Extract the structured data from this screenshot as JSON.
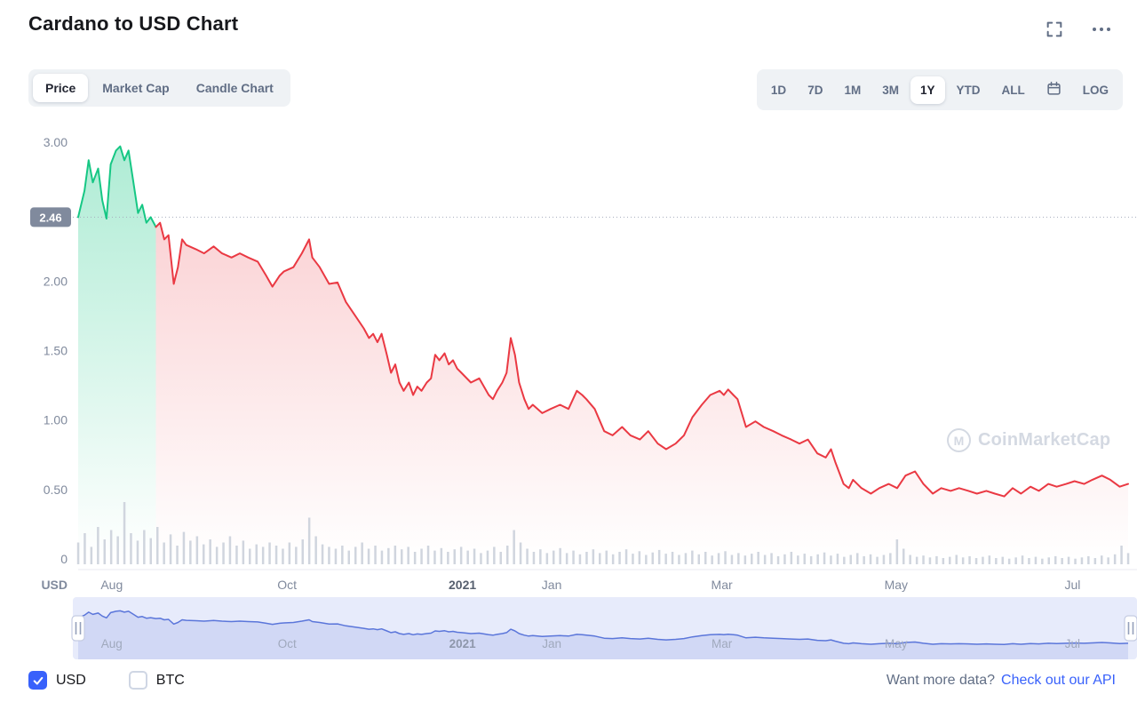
{
  "header": {
    "title": "Cardano to USD Chart"
  },
  "chart_tabs": {
    "items": [
      {
        "label": "Price",
        "active": true
      },
      {
        "label": "Market Cap",
        "active": false
      },
      {
        "label": "Candle Chart",
        "active": false
      }
    ]
  },
  "range_tabs": {
    "items": [
      {
        "label": "1D"
      },
      {
        "label": "7D"
      },
      {
        "label": "1M"
      },
      {
        "label": "3M"
      },
      {
        "label": "1Y",
        "active": true
      },
      {
        "label": "YTD"
      },
      {
        "label": "ALL"
      },
      {
        "label": "LOG"
      }
    ]
  },
  "watermark": {
    "text": "CoinMarketCap",
    "logo_letter": "M"
  },
  "currency": {
    "usd_label": "USD",
    "btc_label": "BTC"
  },
  "footer": {
    "prompt": "Want more data?",
    "link_label": "Check out our API"
  },
  "chart_data": {
    "type": "line",
    "title": "Cardano to USD Chart",
    "unit": "USD",
    "current_price": 2.46,
    "current_price_label": "2.46",
    "ylim": [
      0,
      3.2
    ],
    "yticks": [
      {
        "value": 3.0,
        "label": "3.00"
      },
      {
        "value": 2.0,
        "label": "2.00"
      },
      {
        "value": 1.5,
        "label": "1.50"
      },
      {
        "value": 1.0,
        "label": "1.00"
      },
      {
        "value": 0.5,
        "label": "0.50"
      },
      {
        "value": 0.0,
        "label": "0"
      }
    ],
    "x_labels": [
      {
        "label": "Aug",
        "pos": 3.2
      },
      {
        "label": "Oct",
        "pos": 19.9
      },
      {
        "label": "2021",
        "pos": 36.6,
        "bold": true
      },
      {
        "label": "Jan",
        "pos": 45.1
      },
      {
        "label": "Mar",
        "pos": 61.3
      },
      {
        "label": "May",
        "pos": 77.9
      },
      {
        "label": "Jul",
        "pos": 94.7
      }
    ],
    "green_until_pos": 7.4,
    "series": [
      [
        0,
        2.46
      ],
      [
        0.6,
        2.65
      ],
      [
        1,
        2.87
      ],
      [
        1.4,
        2.71
      ],
      [
        1.9,
        2.81
      ],
      [
        2.3,
        2.58
      ],
      [
        2.7,
        2.45
      ],
      [
        3.1,
        2.84
      ],
      [
        3.6,
        2.94
      ],
      [
        4,
        2.97
      ],
      [
        4.4,
        2.87
      ],
      [
        4.8,
        2.94
      ],
      [
        5.2,
        2.74
      ],
      [
        5.7,
        2.49
      ],
      [
        6.1,
        2.55
      ],
      [
        6.5,
        2.42
      ],
      [
        6.9,
        2.46
      ],
      [
        7.4,
        2.39
      ],
      [
        7.8,
        2.42
      ],
      [
        8.2,
        2.3
      ],
      [
        8.6,
        2.33
      ],
      [
        9.1,
        1.98
      ],
      [
        9.5,
        2.1
      ],
      [
        9.9,
        2.3
      ],
      [
        10.3,
        2.26
      ],
      [
        11.2,
        2.23
      ],
      [
        12,
        2.2
      ],
      [
        12.9,
        2.25
      ],
      [
        13.7,
        2.2
      ],
      [
        14.6,
        2.17
      ],
      [
        15.4,
        2.2
      ],
      [
        16.2,
        2.17
      ],
      [
        17.1,
        2.14
      ],
      [
        17.9,
        2.04
      ],
      [
        18.5,
        1.96
      ],
      [
        19.2,
        2.04
      ],
      [
        19.6,
        2.07
      ],
      [
        20.5,
        2.1
      ],
      [
        21.3,
        2.2
      ],
      [
        22,
        2.3
      ],
      [
        22.3,
        2.17
      ],
      [
        23,
        2.1
      ],
      [
        23.9,
        1.98
      ],
      [
        24.7,
        1.99
      ],
      [
        25.5,
        1.85
      ],
      [
        26.4,
        1.75
      ],
      [
        27.2,
        1.66
      ],
      [
        27.7,
        1.59
      ],
      [
        28.1,
        1.62
      ],
      [
        28.5,
        1.56
      ],
      [
        28.9,
        1.62
      ],
      [
        29.4,
        1.47
      ],
      [
        29.8,
        1.34
      ],
      [
        30.2,
        1.4
      ],
      [
        30.6,
        1.27
      ],
      [
        31,
        1.21
      ],
      [
        31.5,
        1.27
      ],
      [
        31.9,
        1.18
      ],
      [
        32.3,
        1.24
      ],
      [
        32.7,
        1.21
      ],
      [
        33.2,
        1.27
      ],
      [
        33.6,
        1.3
      ],
      [
        34,
        1.47
      ],
      [
        34.4,
        1.43
      ],
      [
        34.9,
        1.48
      ],
      [
        35.3,
        1.4
      ],
      [
        35.7,
        1.43
      ],
      [
        36.1,
        1.37
      ],
      [
        36.5,
        1.34
      ],
      [
        37.4,
        1.27
      ],
      [
        38.2,
        1.3
      ],
      [
        39.1,
        1.18
      ],
      [
        39.5,
        1.15
      ],
      [
        39.9,
        1.21
      ],
      [
        40.4,
        1.27
      ],
      [
        40.8,
        1.34
      ],
      [
        41.2,
        1.59
      ],
      [
        41.6,
        1.47
      ],
      [
        42,
        1.27
      ],
      [
        42.5,
        1.15
      ],
      [
        42.9,
        1.08
      ],
      [
        43.3,
        1.11
      ],
      [
        44.2,
        1.05
      ],
      [
        45,
        1.08
      ],
      [
        45.9,
        1.11
      ],
      [
        46.7,
        1.08
      ],
      [
        47.5,
        1.21
      ],
      [
        48,
        1.18
      ],
      [
        48.4,
        1.15
      ],
      [
        49.2,
        1.08
      ],
      [
        50.1,
        0.92
      ],
      [
        50.9,
        0.89
      ],
      [
        51.8,
        0.95
      ],
      [
        52.6,
        0.89
      ],
      [
        53.5,
        0.86
      ],
      [
        54.3,
        0.92
      ],
      [
        55.2,
        0.83
      ],
      [
        56,
        0.79
      ],
      [
        56.9,
        0.83
      ],
      [
        57.7,
        0.89
      ],
      [
        58.5,
        1.02
      ],
      [
        59.4,
        1.11
      ],
      [
        60.2,
        1.18
      ],
      [
        61.1,
        1.21
      ],
      [
        61.5,
        1.18
      ],
      [
        61.9,
        1.22
      ],
      [
        62.4,
        1.18
      ],
      [
        62.8,
        1.15
      ],
      [
        63.6,
        0.95
      ],
      [
        64.5,
        0.99
      ],
      [
        65.3,
        0.95
      ],
      [
        66.2,
        0.92
      ],
      [
        67,
        0.89
      ],
      [
        67.9,
        0.86
      ],
      [
        68.7,
        0.83
      ],
      [
        69.5,
        0.86
      ],
      [
        70.4,
        0.76
      ],
      [
        71.2,
        0.73
      ],
      [
        71.7,
        0.79
      ],
      [
        72.1,
        0.7
      ],
      [
        72.9,
        0.54
      ],
      [
        73.4,
        0.51
      ],
      [
        73.8,
        0.57
      ],
      [
        74.2,
        0.54
      ],
      [
        74.6,
        0.51
      ],
      [
        75.5,
        0.47
      ],
      [
        76.3,
        0.51
      ],
      [
        77.2,
        0.54
      ],
      [
        78,
        0.51
      ],
      [
        78.8,
        0.6
      ],
      [
        79.7,
        0.63
      ],
      [
        80.5,
        0.54
      ],
      [
        81.4,
        0.47
      ],
      [
        82.2,
        0.51
      ],
      [
        83.1,
        0.49
      ],
      [
        83.9,
        0.51
      ],
      [
        84.8,
        0.49
      ],
      [
        85.6,
        0.47
      ],
      [
        86.5,
        0.49
      ],
      [
        87.3,
        0.47
      ],
      [
        88.2,
        0.45
      ],
      [
        89,
        0.51
      ],
      [
        89.8,
        0.47
      ],
      [
        90.7,
        0.52
      ],
      [
        91.5,
        0.49
      ],
      [
        92.4,
        0.54
      ],
      [
        93.2,
        0.52
      ],
      [
        94.1,
        0.54
      ],
      [
        94.9,
        0.56
      ],
      [
        95.8,
        0.54
      ],
      [
        96.6,
        0.57
      ],
      [
        97.5,
        0.6
      ],
      [
        98.3,
        0.57
      ],
      [
        99.2,
        0.52
      ],
      [
        100,
        0.54
      ]
    ],
    "volume": [
      35,
      50,
      28,
      60,
      40,
      55,
      45,
      100,
      50,
      38,
      55,
      42,
      60,
      35,
      48,
      30,
      52,
      38,
      45,
      32,
      40,
      28,
      35,
      45,
      30,
      38,
      25,
      32,
      28,
      35,
      30,
      25,
      35,
      28,
      40,
      75,
      45,
      32,
      28,
      25,
      30,
      22,
      28,
      35,
      25,
      30,
      22,
      26,
      30,
      24,
      28,
      20,
      25,
      30,
      22,
      26,
      20,
      24,
      28,
      22,
      25,
      18,
      22,
      28,
      20,
      30,
      55,
      35,
      25,
      20,
      24,
      18,
      22,
      26,
      18,
      22,
      16,
      20,
      24,
      18,
      22,
      16,
      20,
      24,
      17,
      21,
      15,
      19,
      23,
      17,
      20,
      15,
      18,
      22,
      16,
      20,
      14,
      18,
      21,
      15,
      18,
      14,
      17,
      20,
      15,
      18,
      13,
      16,
      20,
      14,
      17,
      13,
      16,
      19,
      14,
      17,
      12,
      15,
      18,
      13,
      16,
      12,
      15,
      18,
      40,
      25,
      15,
      12,
      14,
      11,
      13,
      10,
      12,
      15,
      11,
      13,
      10,
      12,
      14,
      10,
      12,
      9,
      11,
      14,
      10,
      12,
      9,
      11,
      13,
      10,
      12,
      9,
      11,
      13,
      10,
      14,
      11,
      16,
      30,
      18
    ],
    "colors": {
      "up": "#16c784",
      "down": "#ea3943",
      "volume": "#d0d5de",
      "dotted": "#a6adbd",
      "badge": "#808a9d",
      "axis_label": "#808a9d",
      "axis_line": "#e8eaf0",
      "nav_bg": "#e7ebfb",
      "nav_line": "#5b76da",
      "nav_fill": "rgba(91,118,218,0.16)",
      "nav_label": "#a0a9bd"
    }
  }
}
